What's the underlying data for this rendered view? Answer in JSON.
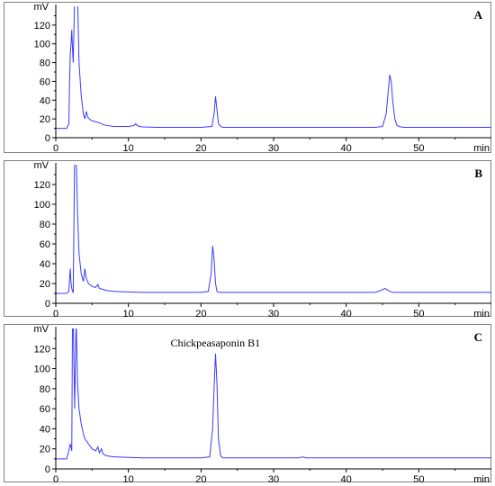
{
  "colors": {
    "trace": "#3a3aff",
    "axis": "#000000",
    "frame": "#808080"
  },
  "chart_data": [
    {
      "type": "line",
      "panel_label": "A",
      "ylabel_unit": "mV",
      "xlabel_unit": "min",
      "xlim": [
        0,
        60
      ],
      "ylim": [
        0,
        140
      ],
      "x_ticks": [
        0,
        10,
        20,
        30,
        40,
        50
      ],
      "y_ticks": [
        0,
        20,
        40,
        60,
        80,
        100,
        120
      ],
      "grid": false,
      "series": [
        {
          "x": [
            0,
            1.5,
            1.8,
            1.9,
            2.0,
            2.1,
            2.2,
            2.3,
            2.4,
            2.6,
            2.8,
            3.0,
            3.2,
            3.5,
            3.8,
            4.0,
            4.2,
            4.4,
            4.6,
            5.0,
            5.5,
            6.0,
            6.5,
            7.0,
            8.0,
            9.0,
            10.0,
            10.8,
            11.0,
            11.2,
            11.5,
            12.0,
            14.0,
            16.0,
            18.0,
            20.0,
            21.5,
            21.8,
            22.0,
            22.2,
            22.4,
            22.7,
            23.0,
            25.0,
            30.0,
            35.0,
            40.0,
            44.0,
            45.0,
            45.5,
            45.8,
            46.0,
            46.2,
            46.4,
            46.7,
            47.0,
            47.5,
            48.0,
            50.0,
            55.0,
            60.0
          ],
          "y": [
            10,
            10,
            15,
            60,
            90,
            100,
            115,
            95,
            80,
            150,
            150,
            150,
            80,
            45,
            25,
            20,
            28,
            22,
            20,
            18,
            17,
            16,
            14,
            13,
            12,
            12,
            12,
            13,
            15,
            13,
            12,
            11.5,
            11,
            11,
            11,
            11,
            12,
            25,
            44,
            30,
            15,
            12,
            11,
            11,
            11,
            11,
            11,
            11,
            12,
            25,
            50,
            67,
            60,
            40,
            20,
            13,
            11.5,
            11,
            11,
            11,
            11
          ]
        }
      ]
    },
    {
      "type": "line",
      "panel_label": "B",
      "ylabel_unit": "mV",
      "xlabel_unit": "min",
      "xlim": [
        0,
        60
      ],
      "ylim": [
        0,
        140
      ],
      "x_ticks": [
        0,
        10,
        20,
        30,
        40,
        50
      ],
      "y_ticks": [
        0,
        20,
        40,
        60,
        80,
        100,
        120
      ],
      "grid": false,
      "series": [
        {
          "x": [
            0,
            1.5,
            1.8,
            1.9,
            2.0,
            2.1,
            2.2,
            2.3,
            2.4,
            2.6,
            2.8,
            3.0,
            3.2,
            3.5,
            3.8,
            4.0,
            4.2,
            4.5,
            5.0,
            5.5,
            5.8,
            6.0,
            6.5,
            7.0,
            8.0,
            10.0,
            12.0,
            15.0,
            18.0,
            20.0,
            21.0,
            21.4,
            21.6,
            21.8,
            22.0,
            22.2,
            22.5,
            23.0,
            25.0,
            30.0,
            35.0,
            40.0,
            44.0,
            44.8,
            45.3,
            45.6,
            46.0,
            46.5,
            47.0,
            50.0,
            55.0,
            60.0
          ],
          "y": [
            10,
            10,
            12,
            25,
            35,
            20,
            15,
            12,
            11,
            150,
            150,
            90,
            50,
            30,
            22,
            35,
            25,
            20,
            17,
            16,
            19,
            15,
            14,
            13,
            12,
            11.5,
            11,
            11,
            11,
            11,
            12,
            30,
            58,
            45,
            20,
            12,
            11,
            11,
            11,
            11,
            11,
            11,
            11,
            13,
            15,
            14,
            12,
            11,
            11,
            11,
            11,
            11
          ]
        }
      ]
    },
    {
      "type": "line",
      "panel_label": "C",
      "ylabel_unit": "mV",
      "xlabel_unit": "min",
      "xlim": [
        0,
        60
      ],
      "ylim": [
        0,
        140
      ],
      "x_ticks": [
        0,
        10,
        20,
        30,
        40,
        50
      ],
      "y_ticks": [
        0,
        20,
        40,
        60,
        80,
        100,
        120
      ],
      "grid": false,
      "annotation": {
        "text": "Chickpeasaponin B1",
        "x": 22.0,
        "y": 122
      },
      "series": [
        {
          "x": [
            0,
            1.5,
            1.8,
            2.0,
            2.1,
            2.2,
            2.3,
            2.4,
            2.6,
            2.8,
            3.0,
            3.2,
            3.5,
            3.8,
            4.0,
            4.5,
            5.0,
            5.5,
            5.8,
            6.0,
            6.3,
            6.5,
            7.0,
            8.0,
            10.0,
            12.0,
            15.0,
            18.0,
            20.0,
            21.2,
            21.6,
            21.8,
            22.0,
            22.2,
            22.4,
            22.7,
            23.0,
            25.0,
            30.0,
            33.5,
            34.0,
            34.5,
            40.0,
            45.0,
            50.0,
            55.0,
            60.0
          ],
          "y": [
            10,
            10,
            18,
            25,
            22,
            18,
            150,
            150,
            60,
            150,
            85,
            60,
            45,
            35,
            30,
            25,
            20,
            18,
            22,
            16,
            20,
            15,
            13,
            12,
            11.5,
            11,
            11,
            11,
            11,
            12,
            40,
            80,
            115,
            85,
            30,
            13,
            11,
            11,
            11,
            11,
            12,
            11,
            11,
            11,
            11,
            11,
            11
          ]
        }
      ]
    }
  ]
}
